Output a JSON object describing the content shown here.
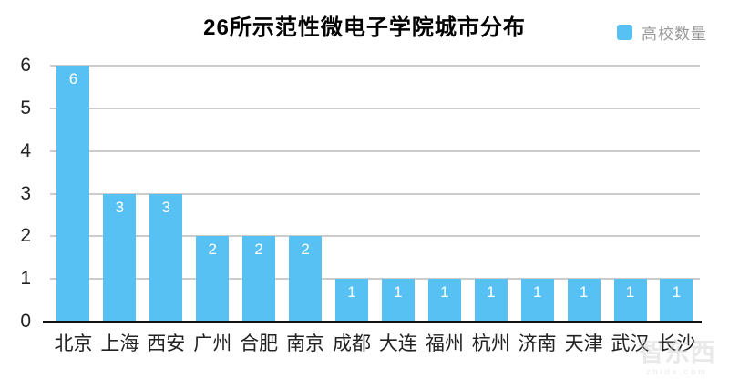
{
  "chart_data": {
    "type": "bar",
    "title": "26所示范性微电子学院城市分布",
    "legend": "高校数量",
    "legend_position": "top-right",
    "categories": [
      "北京",
      "上海",
      "西安",
      "广州",
      "合肥",
      "南京",
      "成都",
      "大连",
      "福州",
      "杭州",
      "济南",
      "天津",
      "武汉",
      "长沙"
    ],
    "values": [
      6,
      3,
      3,
      2,
      2,
      2,
      1,
      1,
      1,
      1,
      1,
      1,
      1,
      1
    ],
    "xlabel": "",
    "ylabel": "",
    "ylim": [
      0,
      6
    ],
    "yticks": [
      0,
      1,
      2,
      3,
      4,
      5,
      6
    ],
    "grid": true,
    "bar_labels_shown": true
  },
  "colors": {
    "bar": "#58C1F3",
    "bar_label": "#ffffff",
    "gridline": "#cccccc",
    "axis": "#111111",
    "text": "#222222",
    "legend_text": "#999999"
  },
  "watermark": {
    "logo_text": "智东西",
    "site_text": "zhidx.com"
  }
}
